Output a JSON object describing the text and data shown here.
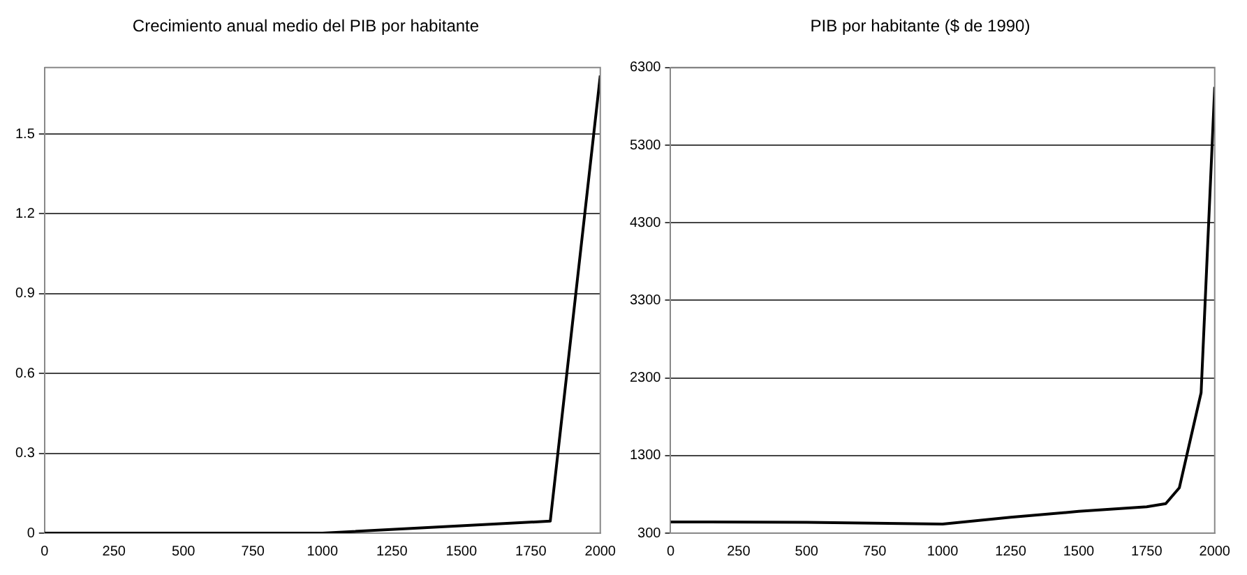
{
  "chart_data": [
    {
      "type": "line",
      "title": "Crecimiento anual medio del PIB por habitante",
      "x": [
        0,
        1000,
        1820,
        2000
      ],
      "series": [
        {
          "color": "#000000",
          "values": [
            0,
            0,
            0.045,
            1.72
          ]
        }
      ],
      "xlim": [
        0,
        2000
      ],
      "xticks": [
        0,
        250,
        500,
        750,
        1000,
        1250,
        1500,
        1750,
        2000
      ],
      "ylim": [
        0,
        1.75
      ],
      "yticks": [
        0,
        0.3,
        0.6,
        0.9,
        1.2,
        1.5
      ],
      "grid": "y",
      "legend": false,
      "marker": "none"
    },
    {
      "type": "line",
      "title": "PIB por habitante ($ de 1990)",
      "x": [
        0,
        500,
        1000,
        1250,
        1500,
        1750,
        1820,
        1870,
        1950,
        2000
      ],
      "series": [
        {
          "color": "#000000",
          "values": [
            445,
            440,
            417,
            505,
            580,
            640,
            680,
            885,
            2110,
            6050
          ]
        }
      ],
      "xlim": [
        0,
        2000
      ],
      "xticks": [
        0,
        250,
        500,
        750,
        1000,
        1250,
        1500,
        1750,
        2000
      ],
      "ylim": [
        300,
        6300
      ],
      "yticks": [
        300,
        1300,
        2300,
        3300,
        4300,
        5300,
        6300
      ],
      "grid": "y",
      "legend": false,
      "marker": "none"
    }
  ]
}
